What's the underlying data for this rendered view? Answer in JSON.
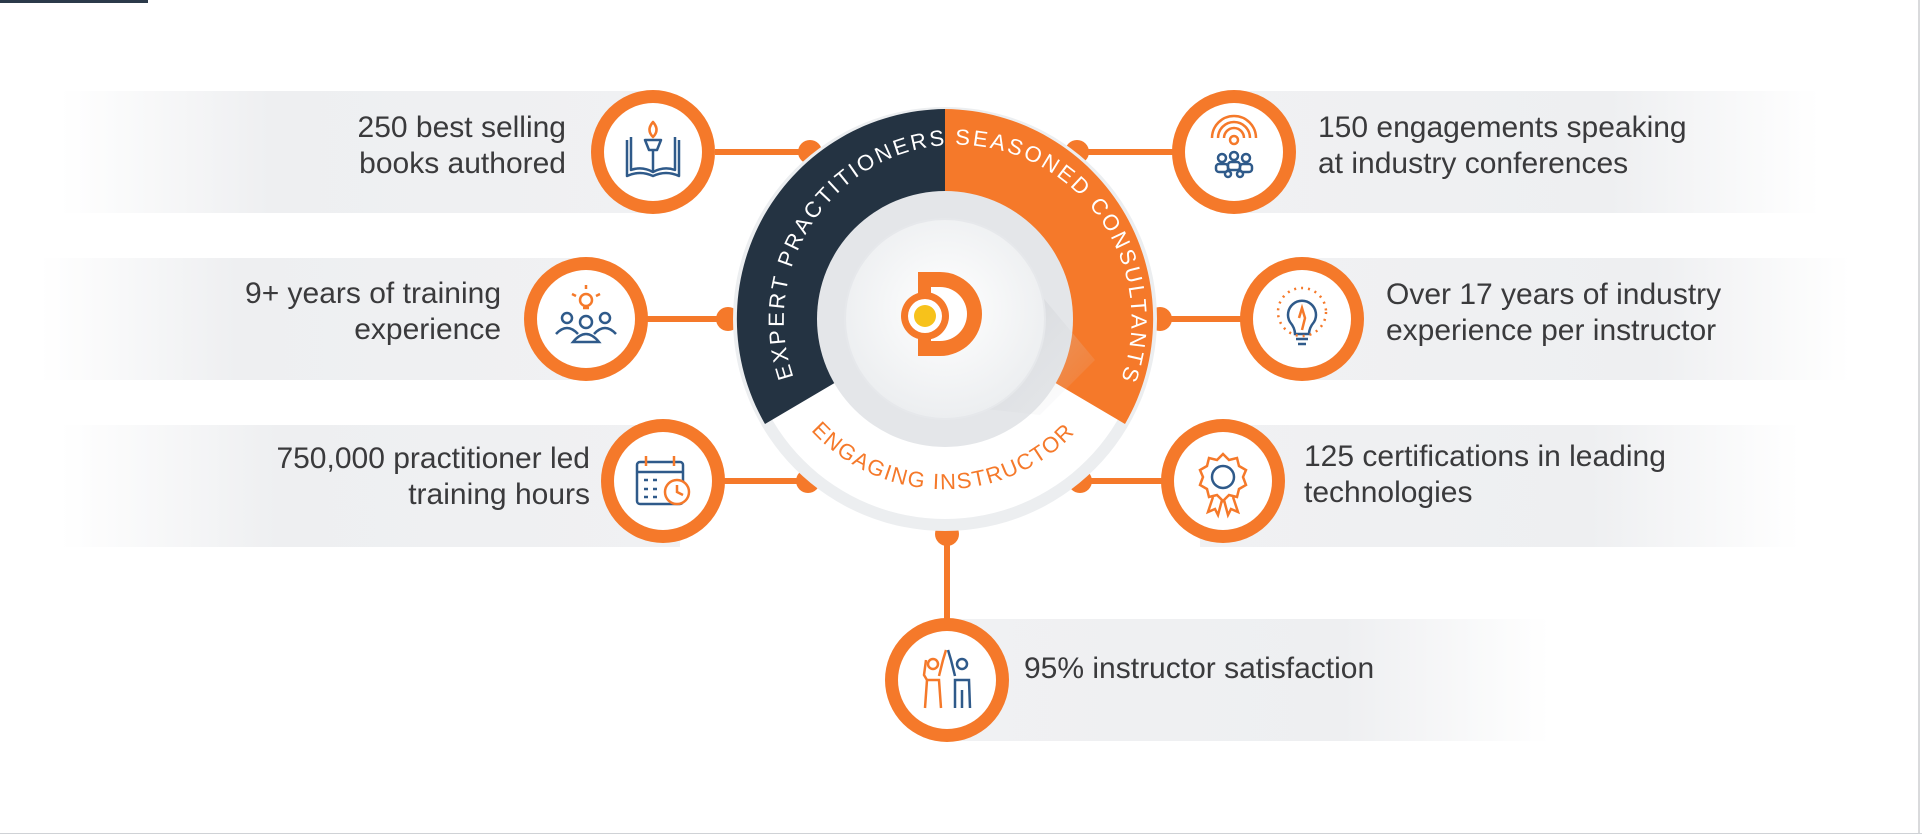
{
  "colors": {
    "accent": "#f5792a",
    "navy": "#243342",
    "icon_blue": "#2f5a8a",
    "text": "#3a3a3c",
    "band": "#eeeff1"
  },
  "center": {
    "logo_icon": "d-logo-icon",
    "arc_labels": {
      "expert": "EXPERT PRACTITIONERS",
      "seasoned": "SEASONED CONSULTANTS",
      "engaging": "ENGAGING INSTRUCTOR"
    }
  },
  "stats": {
    "books": {
      "line1": "250 best selling",
      "line2": "books authored",
      "icon": "book-torch-icon"
    },
    "training": {
      "line1": "9+ years of training",
      "line2": "experience",
      "icon": "team-idea-icon"
    },
    "hours": {
      "line1": "750,000 practitioner led",
      "line2": "training hours",
      "icon": "calendar-clock-icon"
    },
    "speaking": {
      "line1": "150 engagements speaking",
      "line2": "at industry conferences",
      "icon": "audience-broadcast-icon"
    },
    "experience": {
      "line1": "Over 17 years of industry",
      "line2": "experience per instructor",
      "icon": "lightbulb-icon"
    },
    "certs": {
      "line1": "125 certifications in leading",
      "line2": "technologies",
      "icon": "award-badge-icon"
    },
    "satisfaction": {
      "line1": "95% instructor satisfaction",
      "icon": "high-five-icon"
    }
  }
}
